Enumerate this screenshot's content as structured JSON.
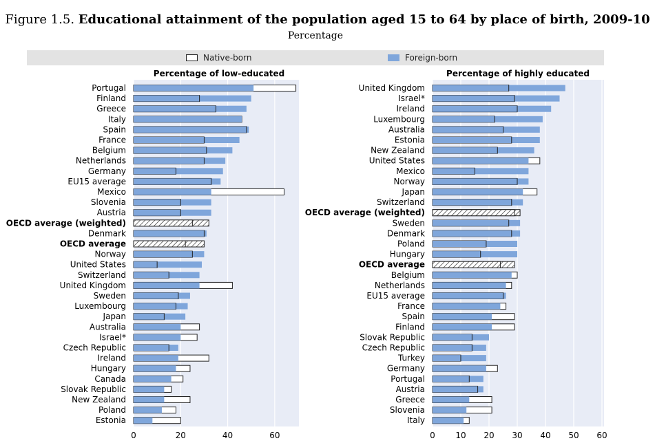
{
  "figure": {
    "label": "Figure 1.5.",
    "title": "Educational attainment of the population aged 15 to 64 by place of birth, 2009-10",
    "subtitle": "Percentage"
  },
  "legend": {
    "native_label": "Native-born",
    "foreign_label": "Foreign-born"
  },
  "colors": {
    "foreign": "#7fa6db",
    "native_fill": "#ffffff",
    "outline": "#222222",
    "panel_bg": "#e8ecf6",
    "legend_bg": "#e3e3e3",
    "grid": "#ffffff"
  },
  "chart_data": [
    {
      "type": "bar",
      "orientation": "horizontal",
      "title": "Percentage of low-educated",
      "xlim": [
        0,
        70
      ],
      "xticks": [
        0,
        20,
        40,
        60
      ],
      "grid": true,
      "highlight": [
        "OECD average (weighted)",
        "OECD average"
      ],
      "categories": [
        "Portugal",
        "Finland",
        "Greece",
        "Italy",
        "Spain",
        "France",
        "Belgium",
        "Netherlands",
        "Germany",
        "EU15 average",
        "Mexico",
        "Slovenia",
        "Austria",
        "OECD average (weighted)",
        "Denmark",
        "OECD average",
        "Norway",
        "United States",
        "Switzerland",
        "United Kingdom",
        "Sweden",
        "Luxembourg",
        "Japan",
        "Australia",
        "Israel*",
        "Czech Republic",
        "Ireland",
        "Hungary",
        "Canada",
        "Slovak Republic",
        "New Zealand",
        "Poland",
        "Estonia"
      ],
      "series": [
        {
          "name": "Native-born",
          "values": [
            69,
            28,
            35,
            46,
            48,
            30,
            31,
            30,
            18,
            33,
            64,
            20,
            20,
            25,
            30,
            22,
            25,
            10,
            15,
            42,
            19,
            18,
            13,
            28,
            27,
            15,
            32,
            24,
            21,
            16,
            24,
            18,
            20
          ]
        },
        {
          "name": "Foreign-born",
          "values": [
            51,
            50,
            48,
            46,
            49,
            45,
            42,
            39,
            38,
            37,
            33,
            33,
            33,
            32,
            31,
            30,
            30,
            29,
            28,
            28,
            24,
            23,
            22,
            20,
            20,
            19,
            19,
            18,
            16,
            13,
            13,
            12,
            8
          ]
        }
      ]
    },
    {
      "type": "bar",
      "orientation": "horizontal",
      "title": "Percentage of highly educated",
      "xlim": [
        0,
        60
      ],
      "xticks": [
        0,
        10,
        20,
        30,
        40,
        50,
        60
      ],
      "grid": true,
      "highlight": [
        "OECD average (weighted)",
        "OECD average"
      ],
      "categories": [
        "United Kingdom",
        "Israel*",
        "Ireland",
        "Luxembourg",
        "Australia",
        "Estonia",
        "New Zealand",
        "United States",
        "Mexico",
        "Norway",
        "Japan",
        "Switzerland",
        "OECD average (weighted)",
        "Sweden",
        "Denmark",
        "Poland",
        "Hungary",
        "OECD average",
        "Belgium",
        "Netherlands",
        "EU15 average",
        "France",
        "Spain",
        "Finland",
        "Slovak Republic",
        "Czech Republic",
        "Turkey",
        "Germany",
        "Portugal",
        "Austria",
        "Greece",
        "Slovenia",
        "Italy"
      ],
      "series": [
        {
          "name": "Native-born",
          "values": [
            27,
            29,
            30,
            22,
            25,
            28,
            23,
            38,
            15,
            30,
            37,
            28,
            31,
            27,
            28,
            19,
            17,
            29,
            30,
            28,
            25,
            26,
            29,
            29,
            14,
            14,
            10,
            23,
            13,
            16,
            21,
            21,
            13
          ]
        },
        {
          "name": "Foreign-born",
          "values": [
            47,
            45,
            42,
            39,
            38,
            38,
            36,
            34,
            34,
            34,
            32,
            32,
            29,
            31,
            31,
            30,
            30,
            24,
            28,
            26,
            26,
            24,
            21,
            21,
            20,
            19,
            19,
            19,
            18,
            18,
            13,
            12,
            11
          ]
        }
      ]
    }
  ]
}
